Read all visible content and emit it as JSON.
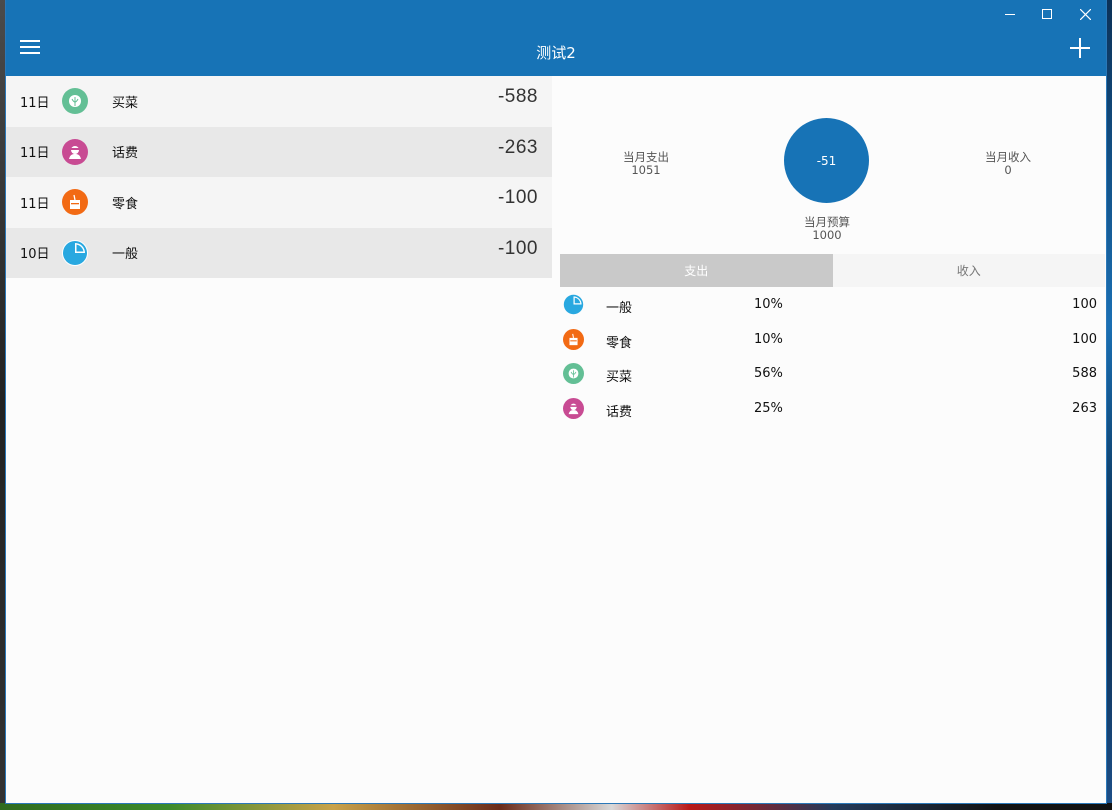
{
  "window": {
    "title": "测试2"
  },
  "colors": {
    "accent": "#1773b6",
    "veg": "#63bf95",
    "phone": "#c84b93",
    "snack": "#f26a14",
    "general": "#29a8e0"
  },
  "records": [
    {
      "day": "11日",
      "icon": "cabbage-icon",
      "category": "买菜",
      "amount": "-588"
    },
    {
      "day": "11日",
      "icon": "phone-user-icon",
      "category": "话费",
      "amount": "-263"
    },
    {
      "day": "11日",
      "icon": "snack-icon",
      "category": "零食",
      "amount": "-100"
    },
    {
      "day": "10日",
      "icon": "pie-icon",
      "category": "一般",
      "amount": "-100"
    }
  ],
  "summary": {
    "expense_label": "当月支出",
    "expense_value": "1051",
    "income_label": "当月收入",
    "income_value": "0",
    "balance": "-51",
    "budget_label": "当月预算",
    "budget_value": "1000"
  },
  "tabs": {
    "expense": "支出",
    "income": "收入"
  },
  "stats": [
    {
      "icon": "pie-icon",
      "name": "一般",
      "percent": "10%",
      "value": "100"
    },
    {
      "icon": "snack-icon",
      "name": "零食",
      "percent": "10%",
      "value": "100"
    },
    {
      "icon": "cabbage-icon",
      "name": "买菜",
      "percent": "56%",
      "value": "588"
    },
    {
      "icon": "phone-user-icon",
      "name": "话费",
      "percent": "25%",
      "value": "263"
    }
  ]
}
